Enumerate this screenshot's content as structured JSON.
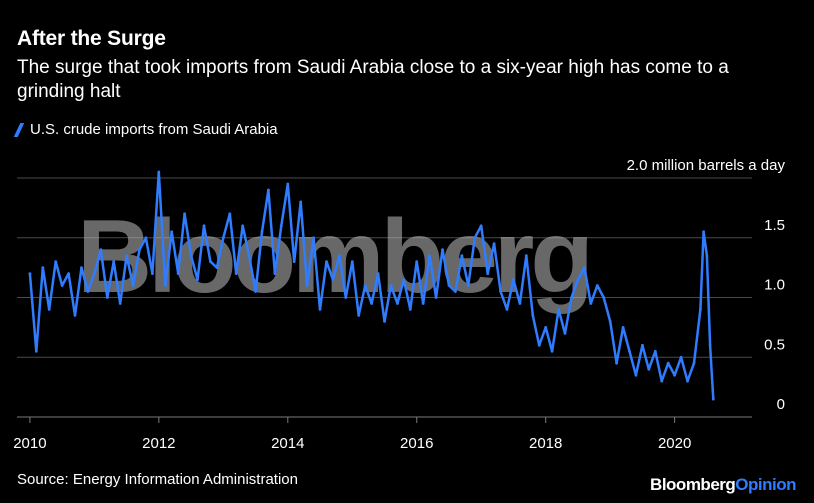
{
  "title": "After the Surge",
  "subtitle": "The surge that took imports from Saudi Arabia close to a six-year high has come to a grinding halt",
  "source": "Source: Energy Information Administration",
  "brand": {
    "part1": "Bloomberg",
    "part2": "Opinion"
  },
  "watermark": "Bloomberg",
  "colors": {
    "background": "#000000",
    "series": "#2f7cff",
    "grid": "#4a4a4a",
    "text": "#ffffff"
  },
  "chart_data": {
    "type": "line",
    "title": "After the Surge",
    "subtitle": "The surge that took imports from Saudi Arabia close to a six-year high has come to a grinding halt",
    "xlabel": "",
    "ylabel": "million barrels a day",
    "x_range": [
      2009.8,
      2021.2
    ],
    "ylim": [
      0,
      2.0
    ],
    "grid": true,
    "legend_position": "top-left",
    "legend": [
      "U.S. crude imports from Saudi Arabia"
    ],
    "x_ticks": [
      2010,
      2012,
      2014,
      2016,
      2018,
      2020
    ],
    "x_tick_labels": [
      "2010",
      "2012",
      "2014",
      "2016",
      "2018",
      "2020"
    ],
    "y_ticks": [
      0,
      0.5,
      1.0,
      1.5,
      2.0
    ],
    "y_tick_labels": [
      "0",
      "0.5",
      "1.0",
      "1.5",
      "2.0 million barrels a day"
    ],
    "series": [
      {
        "name": "U.S. crude imports from Saudi Arabia",
        "color": "#2f7cff",
        "x": [
          2010.0,
          2010.1,
          2010.2,
          2010.3,
          2010.4,
          2010.5,
          2010.6,
          2010.7,
          2010.8,
          2010.9,
          2011.0,
          2011.1,
          2011.2,
          2011.3,
          2011.4,
          2011.5,
          2011.6,
          2011.7,
          2011.8,
          2011.9,
          2012.0,
          2012.1,
          2012.2,
          2012.3,
          2012.4,
          2012.5,
          2012.6,
          2012.7,
          2012.8,
          2012.9,
          2013.0,
          2013.1,
          2013.2,
          2013.3,
          2013.4,
          2013.5,
          2013.6,
          2013.7,
          2013.8,
          2013.9,
          2014.0,
          2014.1,
          2014.2,
          2014.3,
          2014.4,
          2014.5,
          2014.6,
          2014.7,
          2014.8,
          2014.9,
          2015.0,
          2015.1,
          2015.2,
          2015.3,
          2015.4,
          2015.5,
          2015.6,
          2015.7,
          2015.8,
          2015.9,
          2016.0,
          2016.1,
          2016.2,
          2016.3,
          2016.4,
          2016.5,
          2016.6,
          2016.7,
          2016.8,
          2016.9,
          2017.0,
          2017.1,
          2017.2,
          2017.3,
          2017.4,
          2017.5,
          2017.6,
          2017.7,
          2017.8,
          2017.9,
          2018.0,
          2018.1,
          2018.2,
          2018.3,
          2018.4,
          2018.5,
          2018.6,
          2018.7,
          2018.8,
          2018.9,
          2019.0,
          2019.1,
          2019.2,
          2019.3,
          2019.4,
          2019.5,
          2019.6,
          2019.7,
          2019.8,
          2019.9,
          2020.0,
          2020.1,
          2020.2,
          2020.3,
          2020.4,
          2020.45,
          2020.5,
          2020.55,
          2020.6
        ],
        "values": [
          1.2,
          0.55,
          1.25,
          0.9,
          1.3,
          1.1,
          1.2,
          0.85,
          1.25,
          1.05,
          1.2,
          1.4,
          1.0,
          1.3,
          0.95,
          1.35,
          1.1,
          1.4,
          1.5,
          1.2,
          2.05,
          1.1,
          1.55,
          1.2,
          1.7,
          1.35,
          1.15,
          1.6,
          1.3,
          1.25,
          1.5,
          1.7,
          1.2,
          1.6,
          1.35,
          1.05,
          1.55,
          1.9,
          1.2,
          1.6,
          1.95,
          1.3,
          1.8,
          1.1,
          1.5,
          0.9,
          1.3,
          1.15,
          1.35,
          1.0,
          1.3,
          0.85,
          1.1,
          0.95,
          1.2,
          0.8,
          1.1,
          0.95,
          1.15,
          0.9,
          1.3,
          0.95,
          1.35,
          1.0,
          1.4,
          1.1,
          1.05,
          1.35,
          1.1,
          1.5,
          1.6,
          1.2,
          1.45,
          1.05,
          0.9,
          1.15,
          0.95,
          1.35,
          0.85,
          0.6,
          0.75,
          0.55,
          0.9,
          0.7,
          1.0,
          1.15,
          1.25,
          0.95,
          1.1,
          1.0,
          0.8,
          0.45,
          0.75,
          0.55,
          0.35,
          0.6,
          0.4,
          0.55,
          0.3,
          0.45,
          0.35,
          0.5,
          0.3,
          0.45,
          0.9,
          1.55,
          1.35,
          0.6,
          0.15
        ]
      }
    ]
  }
}
